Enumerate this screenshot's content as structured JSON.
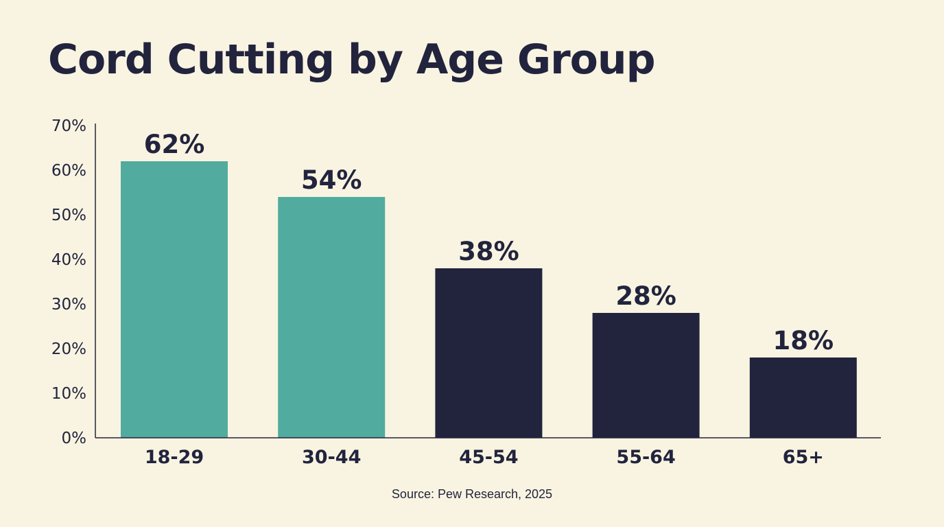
{
  "chart_data": {
    "type": "bar",
    "title": "Cord Cutting by Age Group",
    "categories": [
      "18-29",
      "30-44",
      "45-54",
      "55-64",
      "65+"
    ],
    "values": [
      62,
      54,
      38,
      28,
      18
    ],
    "data_labels": [
      "62%",
      "54%",
      "38%",
      "28%",
      "18%"
    ],
    "bar_colors": [
      "#52ab9f",
      "#52ab9f",
      "#22233d",
      "#22233d",
      "#22233d"
    ],
    "xlabel": "",
    "ylabel": "",
    "ylim": [
      0,
      70
    ],
    "yticks": [
      0,
      10,
      20,
      30,
      40,
      50,
      60,
      70
    ],
    "ytick_labels": [
      "0%",
      "10%",
      "20%",
      "30%",
      "40%",
      "50%",
      "60%",
      "70%"
    ],
    "grid": false,
    "legend": "none",
    "source": "Source: Pew Research, 2025"
  },
  "colors": {
    "background": "#f8f4e1",
    "text": "#22233d",
    "axis": "#22233d"
  }
}
